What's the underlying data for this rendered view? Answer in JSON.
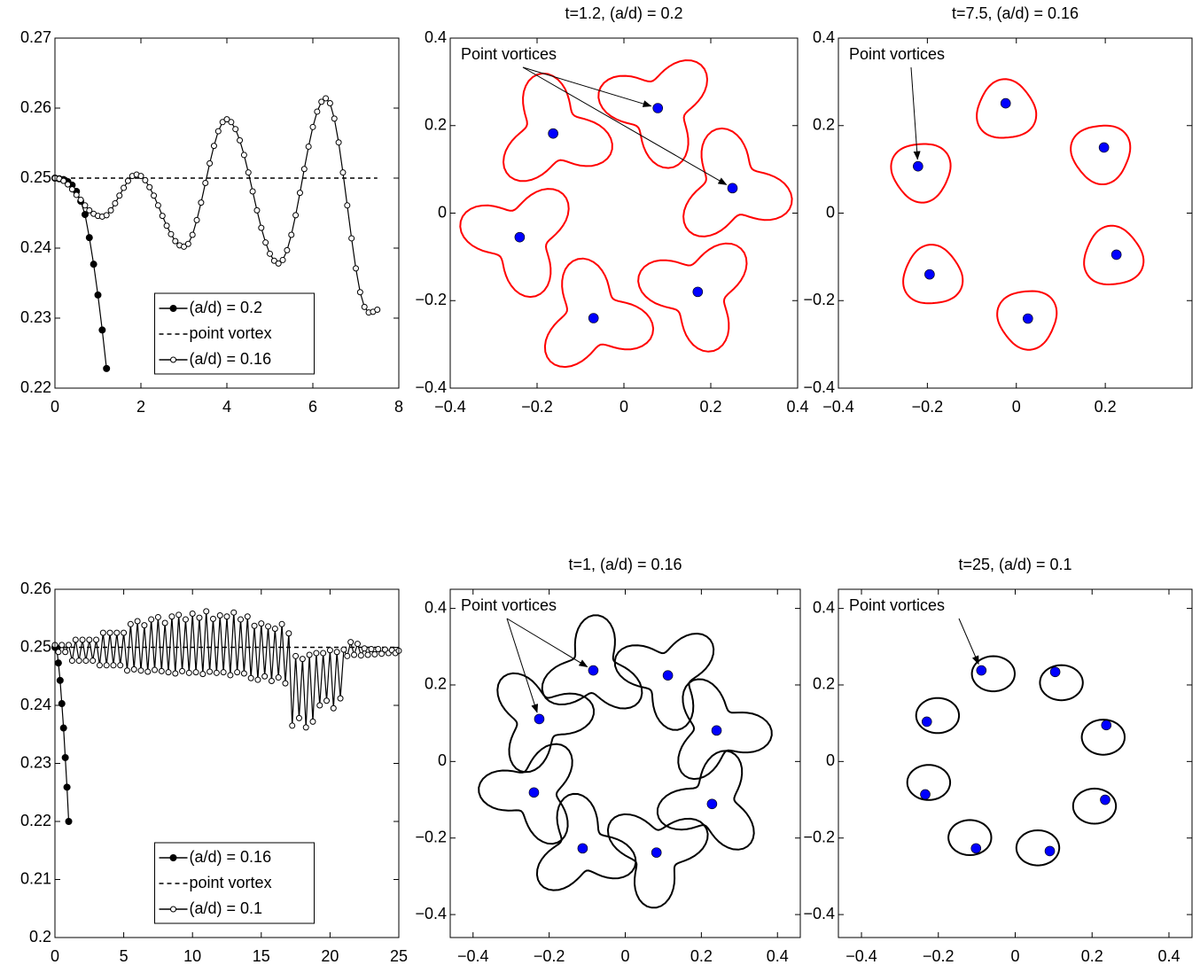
{
  "chart_data": [
    {
      "type": "line",
      "xlim": [
        0,
        8
      ],
      "ylim": [
        0.22,
        0.27
      ],
      "xticks": [
        0,
        2,
        4,
        6,
        8
      ],
      "yticks": [
        0.22,
        0.23,
        0.24,
        0.25,
        0.26,
        0.27
      ],
      "legend": "lower center",
      "series": [
        {
          "name": "(a/d) = 0.2",
          "color": "#000000",
          "marker": "filled",
          "linestyle": "solid",
          "x": [
            0,
            0.1,
            0.2,
            0.3,
            0.4,
            0.5,
            0.6,
            0.7,
            0.8,
            0.9,
            1.0,
            1.1,
            1.2
          ],
          "values": [
            0.25,
            0.2499,
            0.2498,
            0.2495,
            0.249,
            0.2481,
            0.2467,
            0.2448,
            0.2415,
            0.2377,
            0.2333,
            0.2283,
            0.2228
          ]
        },
        {
          "name": "point vortex",
          "color": "#000000",
          "marker": "none",
          "linestyle": "dashed",
          "x": [
            0,
            7.5
          ],
          "values": [
            0.25,
            0.25
          ]
        },
        {
          "name": "(a/d) = 0.16",
          "color": "#000000",
          "marker": "open",
          "linestyle": "solid",
          "x": [
            0,
            0.1,
            0.2,
            0.3,
            0.4,
            0.5,
            0.6,
            0.7,
            0.8,
            0.9,
            1.0,
            1.1,
            1.2,
            1.3,
            1.4,
            1.5,
            1.6,
            1.7,
            1.8,
            1.9,
            2.0,
            2.1,
            2.2,
            2.3,
            2.4,
            2.5,
            2.6,
            2.7,
            2.8,
            2.9,
            3.0,
            3.1,
            3.2,
            3.3,
            3.4,
            3.5,
            3.6,
            3.7,
            3.8,
            3.9,
            4.0,
            4.1,
            4.2,
            4.3,
            4.4,
            4.5,
            4.6,
            4.7,
            4.8,
            4.9,
            5.0,
            5.1,
            5.2,
            5.3,
            5.4,
            5.5,
            5.6,
            5.7,
            5.8,
            5.9,
            6.0,
            6.1,
            6.2,
            6.3,
            6.4,
            6.5,
            6.6,
            6.7,
            6.8,
            6.9,
            7.0,
            7.1,
            7.2,
            7.3,
            7.4,
            7.5
          ],
          "values": [
            0.25,
            0.2499,
            0.2496,
            0.2491,
            0.2484,
            0.2476,
            0.2469,
            0.2461,
            0.2454,
            0.2449,
            0.2446,
            0.2445,
            0.2447,
            0.2454,
            0.2464,
            0.2475,
            0.2486,
            0.2496,
            0.2503,
            0.2505,
            0.2503,
            0.2497,
            0.2487,
            0.2475,
            0.2461,
            0.2446,
            0.2432,
            0.242,
            0.241,
            0.2404,
            0.2402,
            0.2406,
            0.2419,
            0.244,
            0.2465,
            0.2493,
            0.2521,
            0.2546,
            0.2567,
            0.258,
            0.2584,
            0.258,
            0.257,
            0.2554,
            0.2533,
            0.2508,
            0.2481,
            0.2454,
            0.2429,
            0.2408,
            0.2392,
            0.2382,
            0.2378,
            0.2383,
            0.2397,
            0.2419,
            0.2447,
            0.2479,
            0.2513,
            0.2545,
            0.2573,
            0.2595,
            0.2609,
            0.2614,
            0.2607,
            0.2585,
            0.2551,
            0.2508,
            0.2461,
            0.2414,
            0.2371,
            0.2337,
            0.2316,
            0.2308,
            0.2309,
            0.2312
          ]
        }
      ]
    },
    {
      "type": "scatter",
      "title": "t=1.2, (a/d) = 0.2",
      "annotation": "Point vortices",
      "color": "#0000ff",
      "contour_color": "#ff0000",
      "xlim": [
        -0.4,
        0.4
      ],
      "ylim": [
        -0.4,
        0.4
      ],
      "xticks": [
        {
          "value": -0.4,
          "label": "−0.4"
        },
        {
          "value": -0.2,
          "label": "−0.2"
        },
        0,
        0.2,
        0.4
      ],
      "yticks": [
        {
          "value": -0.4,
          "label": "−0.4"
        },
        {
          "value": -0.2,
          "label": "−0.2"
        },
        0,
        0.2,
        0.4
      ],
      "x": [
        0.078,
        -0.163,
        0.25,
        -0.24,
        0.17,
        -0.07
      ],
      "values": [
        0.24,
        0.182,
        0.057,
        -0.055,
        -0.18,
        -0.24
      ]
    },
    {
      "type": "scatter",
      "title": "t=7.5, (a/d) = 0.16",
      "annotation": "Point vortices",
      "color": "#0000ff",
      "contour_color": "#ff0000",
      "xlim": [
        -0.4,
        0.395
      ],
      "ylim": [
        -0.4,
        0.4
      ],
      "xticks": [
        {
          "value": -0.4,
          "label": "−0.4"
        },
        {
          "value": -0.2,
          "label": "−0.2"
        },
        0,
        0.2
      ],
      "yticks": [
        {
          "value": -0.4,
          "label": "−0.4"
        },
        {
          "value": -0.2,
          "label": "−0.2"
        },
        0,
        0.2,
        0.4
      ],
      "x": [
        -0.024,
        0.197,
        -0.221,
        0.225,
        -0.195,
        0.026
      ],
      "values": [
        0.251,
        0.15,
        0.107,
        -0.095,
        -0.14,
        -0.241
      ]
    },
    {
      "type": "line",
      "xlim": [
        0,
        25
      ],
      "ylim": [
        0.2,
        0.26
      ],
      "xticks": [
        0,
        5,
        10,
        15,
        20,
        25
      ],
      "yticks": [
        0.2,
        0.21,
        0.22,
        0.23,
        0.24,
        0.25,
        0.26
      ],
      "legend": "lower center",
      "series": [
        {
          "name": "(a/d) = 0.16",
          "color": "#000000",
          "marker": "filled",
          "linestyle": "solid",
          "x": [
            0,
            0.125,
            0.25,
            0.375,
            0.5,
            0.625,
            0.75,
            0.875,
            1
          ],
          "values": [
            0.25,
            0.2499,
            0.2473,
            0.2443,
            0.2403,
            0.2361,
            0.231,
            0.2259,
            0.22
          ]
        },
        {
          "name": "point vortex",
          "color": "#000000",
          "marker": "none",
          "linestyle": "dashed",
          "x": [
            0,
            25
          ],
          "values": [
            0.25,
            0.25
          ]
        },
        {
          "name": "(a/d) = 0.1",
          "color": "#000000",
          "marker": "open",
          "linestyle": "solid",
          "x": [
            0,
            0.25,
            0.5,
            0.75,
            1,
            1.25,
            1.5,
            1.75,
            2,
            2.25,
            2.5,
            2.75,
            3,
            3.25,
            3.5,
            3.75,
            4,
            4.25,
            4.5,
            4.75,
            5,
            5.25,
            5.5,
            5.75,
            6,
            6.25,
            6.5,
            6.75,
            7,
            7.25,
            7.5,
            7.75,
            8,
            8.25,
            8.5,
            8.75,
            9,
            9.25,
            9.5,
            9.75,
            10,
            10.25,
            10.5,
            10.75,
            11,
            11.25,
            11.5,
            11.75,
            12,
            12.25,
            12.5,
            12.75,
            13,
            13.25,
            13.5,
            13.75,
            14,
            14.25,
            14.5,
            14.75,
            15,
            15.25,
            15.5,
            15.75,
            16,
            16.25,
            16.5,
            16.75,
            17,
            17.25,
            17.5,
            17.75,
            18,
            18.25,
            18.5,
            18.75,
            19,
            19.25,
            19.5,
            19.75,
            20,
            20.25,
            20.5,
            20.75,
            21,
            21.25,
            21.5,
            21.75,
            22,
            22.25,
            22.5,
            22.75,
            23,
            23.25,
            23.5,
            23.75,
            24,
            24.25,
            24.5,
            24.75,
            25
          ],
          "values": [
            0.2504,
            0.2492,
            0.2504,
            0.2492,
            0.2504,
            0.2477,
            0.2513,
            0.2477,
            0.2513,
            0.2477,
            0.2513,
            0.2477,
            0.2513,
            0.2469,
            0.2525,
            0.2469,
            0.2525,
            0.2469,
            0.2525,
            0.2469,
            0.2525,
            0.246,
            0.254,
            0.2462,
            0.2545,
            0.246,
            0.2538,
            0.2458,
            0.2548,
            0.2461,
            0.2552,
            0.2459,
            0.2542,
            0.2457,
            0.2553,
            0.2455,
            0.2556,
            0.2459,
            0.2548,
            0.2456,
            0.2558,
            0.2457,
            0.2551,
            0.2454,
            0.2562,
            0.2458,
            0.2549,
            0.2456,
            0.2555,
            0.2457,
            0.2553,
            0.2452,
            0.256,
            0.2457,
            0.2548,
            0.2455,
            0.2553,
            0.2447,
            0.2537,
            0.2444,
            0.2541,
            0.245,
            0.2536,
            0.2442,
            0.2532,
            0.2448,
            0.254,
            0.2438,
            0.2524,
            0.2365,
            0.2485,
            0.2378,
            0.248,
            0.2362,
            0.2487,
            0.2372,
            0.249,
            0.24,
            0.249,
            0.2408,
            0.2495,
            0.2395,
            0.2492,
            0.2412,
            0.2496,
            0.2485,
            0.2509,
            0.2487,
            0.2506,
            0.2486,
            0.2498,
            0.2487,
            0.2497,
            0.2488,
            0.2497,
            0.2489,
            0.2496,
            0.249,
            0.2495,
            0.249,
            0.2494
          ]
        }
      ]
    },
    {
      "type": "scatter",
      "title": "t=1, (a/d) = 0.16",
      "annotation": "Point vortices",
      "color": "#0000ff",
      "contour_color": "#000000",
      "xlim": [
        -0.46,
        0.46
      ],
      "ylim": [
        -0.46,
        0.45
      ],
      "xticks": [
        {
          "value": -0.4,
          "label": "−0.4"
        },
        {
          "value": -0.2,
          "label": "−0.2"
        },
        0,
        0.2,
        0.4
      ],
      "yticks": [
        {
          "value": -0.4,
          "label": "−0.4"
        },
        {
          "value": -0.2,
          "label": "−0.2"
        },
        0,
        0.2,
        0.4
      ],
      "x": [
        -0.084,
        0.112,
        -0.226,
        0.24,
        -0.24,
        0.228,
        -0.112,
        0.082
      ],
      "values": [
        0.238,
        0.225,
        0.111,
        0.081,
        -0.081,
        -0.111,
        -0.227,
        -0.238
      ]
    },
    {
      "type": "scatter",
      "title": "t=25, (a/d) = 0.1",
      "annotation": "Point vortices",
      "color": "#0000ff",
      "contour_color": "#000000",
      "xlim": [
        -0.46,
        0.46
      ],
      "ylim": [
        -0.46,
        0.45
      ],
      "xticks": [
        {
          "value": -0.4,
          "label": "−0.4"
        },
        {
          "value": -0.2,
          "label": "−0.2"
        },
        0,
        0.2,
        0.4
      ],
      "yticks": [
        {
          "value": -0.4,
          "label": "−0.4"
        },
        {
          "value": -0.2,
          "label": "−0.2"
        },
        0,
        0.2,
        0.4
      ],
      "x": [
        -0.088,
        0.104,
        -0.23,
        0.237,
        -0.234,
        0.234,
        -0.102,
        0.09
      ],
      "values": [
        0.238,
        0.234,
        0.104,
        0.095,
        -0.086,
        -0.1,
        -0.227,
        -0.234
      ]
    }
  ]
}
